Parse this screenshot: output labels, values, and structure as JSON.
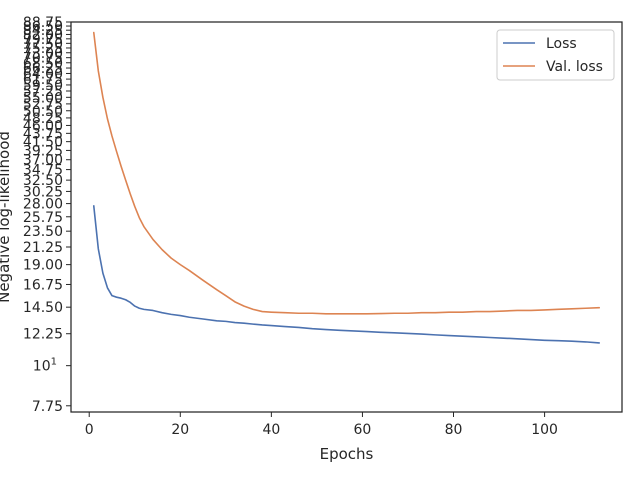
{
  "chart_data": {
    "type": "line",
    "title": "",
    "xlabel": "Epochs",
    "ylabel": "Negative log-likelihood",
    "xlim": [
      -4,
      117
    ],
    "ylim": [
      7.45,
      88.75
    ],
    "yscale": "log",
    "grid": false,
    "legend_position": "top-right",
    "x_ticks": [
      0,
      20,
      40,
      60,
      80,
      100
    ],
    "x_tick_labels": [
      "0",
      "20",
      "40",
      "60",
      "80",
      "100"
    ],
    "y_ticks": [
      7.75,
      10,
      12.25,
      14.5,
      16.75,
      19,
      21.25,
      23.5,
      25.75,
      28,
      30.25,
      32.5,
      34.75,
      37,
      39.25,
      41.5,
      43.75,
      46,
      48.25,
      50.5,
      52.75,
      55,
      57.25,
      59.5,
      61.75,
      64,
      66.25,
      68.5,
      70.75,
      73,
      75.25,
      77.5,
      79.75,
      82,
      84.25,
      86.5,
      88.75
    ],
    "y_tick_labels": [
      "7.75",
      "10",
      "12.25",
      "14.50",
      "16.75",
      "19.00",
      "21.25",
      "23.50",
      "25.75",
      "28.00",
      "30.25",
      "32.50",
      "34.75",
      "37.00",
      "39.25",
      "41.50",
      "43.75",
      "46.00",
      "48.25",
      "50.50",
      "52.75",
      "55.00",
      "57.25",
      "59.50",
      "61.75",
      "64.00",
      "66.25",
      "68.50",
      "70.75",
      "73.00",
      "75.25",
      "77.50",
      "79.75",
      "82.00",
      "84.25",
      "86.50",
      "88.75"
    ],
    "x": [
      1,
      2,
      3,
      4,
      5,
      6,
      7,
      8,
      9,
      10,
      11,
      12,
      14,
      16,
      18,
      20,
      22,
      25,
      28,
      30,
      32,
      34,
      36,
      38,
      40,
      43,
      46,
      49,
      52,
      55,
      58,
      61,
      64,
      67,
      70,
      73,
      76,
      79,
      82,
      85,
      88,
      91,
      94,
      97,
      100,
      103,
      106,
      109,
      112
    ],
    "series": [
      {
        "name": "Loss",
        "color": "#4c72b0",
        "values": [
          27.6,
          21.0,
          18.0,
          16.4,
          15.6,
          15.45,
          15.35,
          15.2,
          14.95,
          14.6,
          14.4,
          14.3,
          14.2,
          14.0,
          13.85,
          13.75,
          13.6,
          13.45,
          13.3,
          13.25,
          13.15,
          13.1,
          13.02,
          12.95,
          12.9,
          12.82,
          12.75,
          12.65,
          12.58,
          12.52,
          12.47,
          12.42,
          12.36,
          12.32,
          12.27,
          12.22,
          12.16,
          12.11,
          12.06,
          12.01,
          11.96,
          11.91,
          11.86,
          11.8,
          11.75,
          11.72,
          11.68,
          11.63,
          11.55
        ]
      },
      {
        "name": "Val. loss",
        "color": "#dd8452",
        "values": [
          83.0,
          65.0,
          55.0,
          48.0,
          43.0,
          39.0,
          35.5,
          32.5,
          29.8,
          27.5,
          25.6,
          24.2,
          22.3,
          20.9,
          19.8,
          19.0,
          18.3,
          17.2,
          16.2,
          15.6,
          15.0,
          14.6,
          14.3,
          14.1,
          14.05,
          14.0,
          13.95,
          13.95,
          13.9,
          13.9,
          13.9,
          13.9,
          13.92,
          13.95,
          13.95,
          14.0,
          14.0,
          14.05,
          14.05,
          14.1,
          14.1,
          14.15,
          14.2,
          14.2,
          14.25,
          14.3,
          14.35,
          14.4,
          14.45
        ]
      }
    ]
  }
}
